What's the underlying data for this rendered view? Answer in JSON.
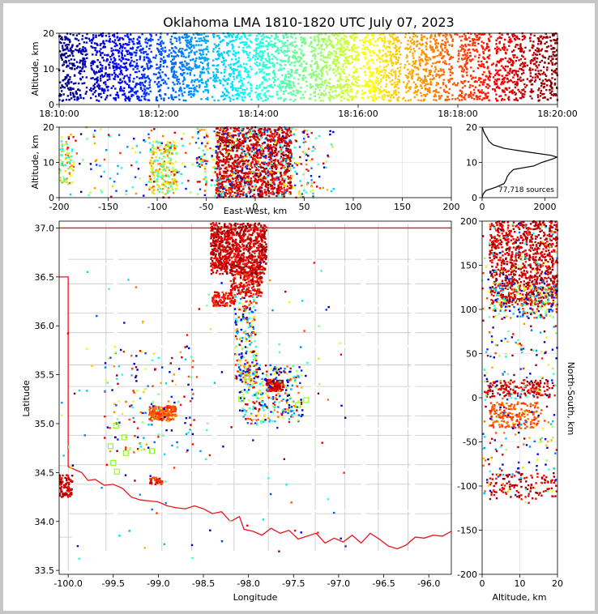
{
  "title": "Oklahoma LMA 1810-1820 UTC July 07, 2023",
  "colors": {
    "frame_bg": "#c6c6c6",
    "border_red": "#e8141c",
    "county_gray": "#c4c4c4",
    "vhf_squares": "#7cfc00",
    "colormap": [
      "#00007f",
      "#0000ff",
      "#007fff",
      "#00ffff",
      "#7fff7f",
      "#ffff00",
      "#ff7f00",
      "#ff0000",
      "#7f0000"
    ]
  },
  "chart_data": [
    {
      "panel": "time-height",
      "type": "scatter",
      "xlabel": "",
      "ylabel": "Altitude, km",
      "xticks": [
        "18:10:00",
        "18:12:00",
        "18:14:00",
        "18:16:00",
        "18:18:00",
        "18:20:00"
      ],
      "xlim_minutes": [
        0,
        10
      ],
      "ylim": [
        0,
        20
      ],
      "yticks": [
        0,
        10,
        20
      ],
      "color_by": "time",
      "altitude_range_km": [
        1,
        20
      ],
      "gaps_minutes": [
        0.6,
        1.9,
        2.2,
        3.05,
        3.9,
        5.0,
        6.05,
        6.9,
        7.95,
        8.7,
        9.4
      ]
    },
    {
      "panel": "east-west-altitude",
      "type": "scatter",
      "xlabel": "East-West, km",
      "ylabel": "Altitude, km",
      "xlim": [
        -200,
        200
      ],
      "xticks": [
        -200,
        -150,
        -100,
        -50,
        0,
        50,
        100,
        150,
        200
      ],
      "ylim": [
        0,
        20
      ],
      "yticks": [
        0,
        10,
        20
      ],
      "color_by": "time",
      "clusters": [
        {
          "x": [
            -200,
            -185
          ],
          "y": [
            4,
            16
          ],
          "time": [
            0.35,
            0.85
          ],
          "density": 70
        },
        {
          "x": [
            -108,
            -80
          ],
          "y": [
            1,
            16
          ],
          "time": [
            0.4,
            0.8
          ],
          "density": 220
        },
        {
          "x": [
            -40,
            37
          ],
          "y": [
            0,
            20
          ],
          "time": [
            0.85,
            1.0
          ],
          "density": 1100
        },
        {
          "x": [
            -60,
            60
          ],
          "y": [
            0,
            20
          ],
          "time": [
            0.0,
            1.0
          ],
          "density": 300
        },
        {
          "x": [
            -200,
            80
          ],
          "y": [
            0,
            20
          ],
          "time": [
            0.0,
            1.0
          ],
          "density": 260
        }
      ]
    },
    {
      "panel": "altitude-histogram",
      "type": "line",
      "annotation": "77,718 sources",
      "xlim": [
        0,
        2400
      ],
      "xticks": [
        0,
        2000
      ],
      "ylim": [
        0,
        20
      ],
      "yticks": [
        0,
        10,
        20
      ],
      "profile": {
        "altitude": [
          0,
          1,
          2,
          3,
          4,
          5,
          6,
          7,
          8,
          9,
          10,
          11,
          11.5,
          12,
          13,
          14,
          15,
          16,
          17,
          18,
          19,
          20
        ],
        "count": [
          0,
          30,
          120,
          450,
          700,
          760,
          800,
          880,
          1000,
          1650,
          1900,
          2250,
          2380,
          2200,
          1400,
          700,
          350,
          220,
          160,
          90,
          40,
          10
        ]
      }
    },
    {
      "panel": "plan-view",
      "type": "scatter",
      "xlabel": "Longitude",
      "ylabel": "Latitude",
      "xlim": [
        -100.1,
        -95.75
      ],
      "xticks": [
        "-100.0",
        "-99.5",
        "-99.0",
        "-98.5",
        "-98.0",
        "-97.5",
        "-97.0",
        "-96.5",
        "-96.0"
      ],
      "xtick_values": [
        -100.0,
        -99.5,
        -99.0,
        -98.5,
        -98.0,
        -97.5,
        -97.0,
        -96.5,
        -96.0
      ],
      "ylim": [
        33.46,
        37.07
      ],
      "yticks": [
        "33.5",
        "34.0",
        "34.5",
        "35.0",
        "35.5",
        "36.0",
        "36.5",
        "37.0"
      ],
      "ytick_values": [
        33.5,
        34.0,
        34.5,
        35.0,
        35.5,
        36.0,
        36.5,
        37.0
      ],
      "color_by": "time",
      "clusters": [
        {
          "lon": [
            -98.42,
            -97.8
          ],
          "lat": [
            36.53,
            37.05
          ],
          "time": [
            0.85,
            1.0
          ],
          "density": 900
        },
        {
          "lon": [
            -98.2,
            -97.85
          ],
          "lat": [
            36.3,
            36.55
          ],
          "time": [
            0.8,
            1.0
          ],
          "density": 180
        },
        {
          "lon": [
            -98.4,
            -98.15
          ],
          "lat": [
            36.2,
            36.35
          ],
          "time": [
            0.8,
            0.95
          ],
          "density": 100
        },
        {
          "lon": [
            -98.15,
            -97.9
          ],
          "lat": [
            35.4,
            36.3
          ],
          "time": [
            0.0,
            1.0
          ],
          "density": 220
        },
        {
          "lon": [
            -97.8,
            -97.62
          ],
          "lat": [
            35.33,
            35.45
          ],
          "time": [
            0.85,
            1.0
          ],
          "density": 140
        },
        {
          "lon": [
            -98.1,
            -97.4
          ],
          "lat": [
            35.0,
            35.6
          ],
          "time": [
            0.0,
            1.0
          ],
          "density": 300
        },
        {
          "lon": [
            -99.1,
            -98.8
          ],
          "lat": [
            35.03,
            35.18
          ],
          "time": [
            0.75,
            0.85
          ],
          "density": 200
        },
        {
          "lon": [
            -99.6,
            -98.6
          ],
          "lat": [
            34.7,
            35.8
          ],
          "time": [
            0.0,
            1.0
          ],
          "density": 160
        },
        {
          "lon": [
            -100.1,
            -99.95
          ],
          "lat": [
            34.25,
            34.48
          ],
          "time": [
            0.85,
            1.0
          ],
          "density": 90
        },
        {
          "lon": [
            -99.1,
            -98.95
          ],
          "lat": [
            34.38,
            34.46
          ],
          "time": [
            0.75,
            0.95
          ],
          "density": 40
        },
        {
          "lon": [
            -100.1,
            -96.9
          ],
          "lat": [
            33.6,
            36.7
          ],
          "time": [
            0.0,
            1.0
          ],
          "density": 120
        }
      ],
      "vhf_stations": [
        {
          "lon": -99.47,
          "lat": 34.98
        },
        {
          "lon": -99.38,
          "lat": 34.86
        },
        {
          "lon": -99.53,
          "lat": 34.77
        },
        {
          "lon": -99.36,
          "lat": 34.7
        },
        {
          "lon": -99.5,
          "lat": 34.6
        },
        {
          "lon": -99.46,
          "lat": 34.51
        },
        {
          "lon": -99.07,
          "lat": 34.72
        },
        {
          "lon": -98.08,
          "lat": 35.25
        },
        {
          "lon": -98.02,
          "lat": 35.48
        },
        {
          "lon": -97.93,
          "lat": 35.02
        },
        {
          "lon": -97.36,
          "lat": 35.24
        },
        {
          "lon": -97.45,
          "lat": 35.19
        }
      ]
    },
    {
      "panel": "altitude-north-south",
      "type": "scatter",
      "xlabel": "Altitude, km",
      "ylabel": "North-South, km",
      "xlim": [
        0,
        20
      ],
      "xticks": [
        0,
        10,
        20
      ],
      "ylim": [
        -200,
        200
      ],
      "yticks": [
        -200,
        -150,
        -100,
        -50,
        0,
        50,
        100,
        150,
        200
      ],
      "color_by": "time",
      "clusters": [
        {
          "alt": [
            2,
            20
          ],
          "ns": [
            105,
            200
          ],
          "time": [
            0.85,
            1.0
          ],
          "density": 900
        },
        {
          "alt": [
            3,
            20
          ],
          "ns": [
            90,
            130
          ],
          "time": [
            0.0,
            1.0
          ],
          "density": 200
        },
        {
          "alt": [
            1,
            20
          ],
          "ns": [
            0,
            20
          ],
          "time": [
            0.85,
            1.0
          ],
          "density": 150
        },
        {
          "alt": [
            2,
            15
          ],
          "ns": [
            -35,
            -5
          ],
          "time": [
            0.75,
            0.85
          ],
          "density": 180
        },
        {
          "alt": [
            2,
            20
          ],
          "ns": [
            -115,
            -85
          ],
          "time": [
            0.85,
            1.0
          ],
          "density": 120
        },
        {
          "alt": [
            0,
            20
          ],
          "ns": [
            -120,
            200
          ],
          "time": [
            0.0,
            1.0
          ],
          "density": 360
        }
      ]
    }
  ]
}
